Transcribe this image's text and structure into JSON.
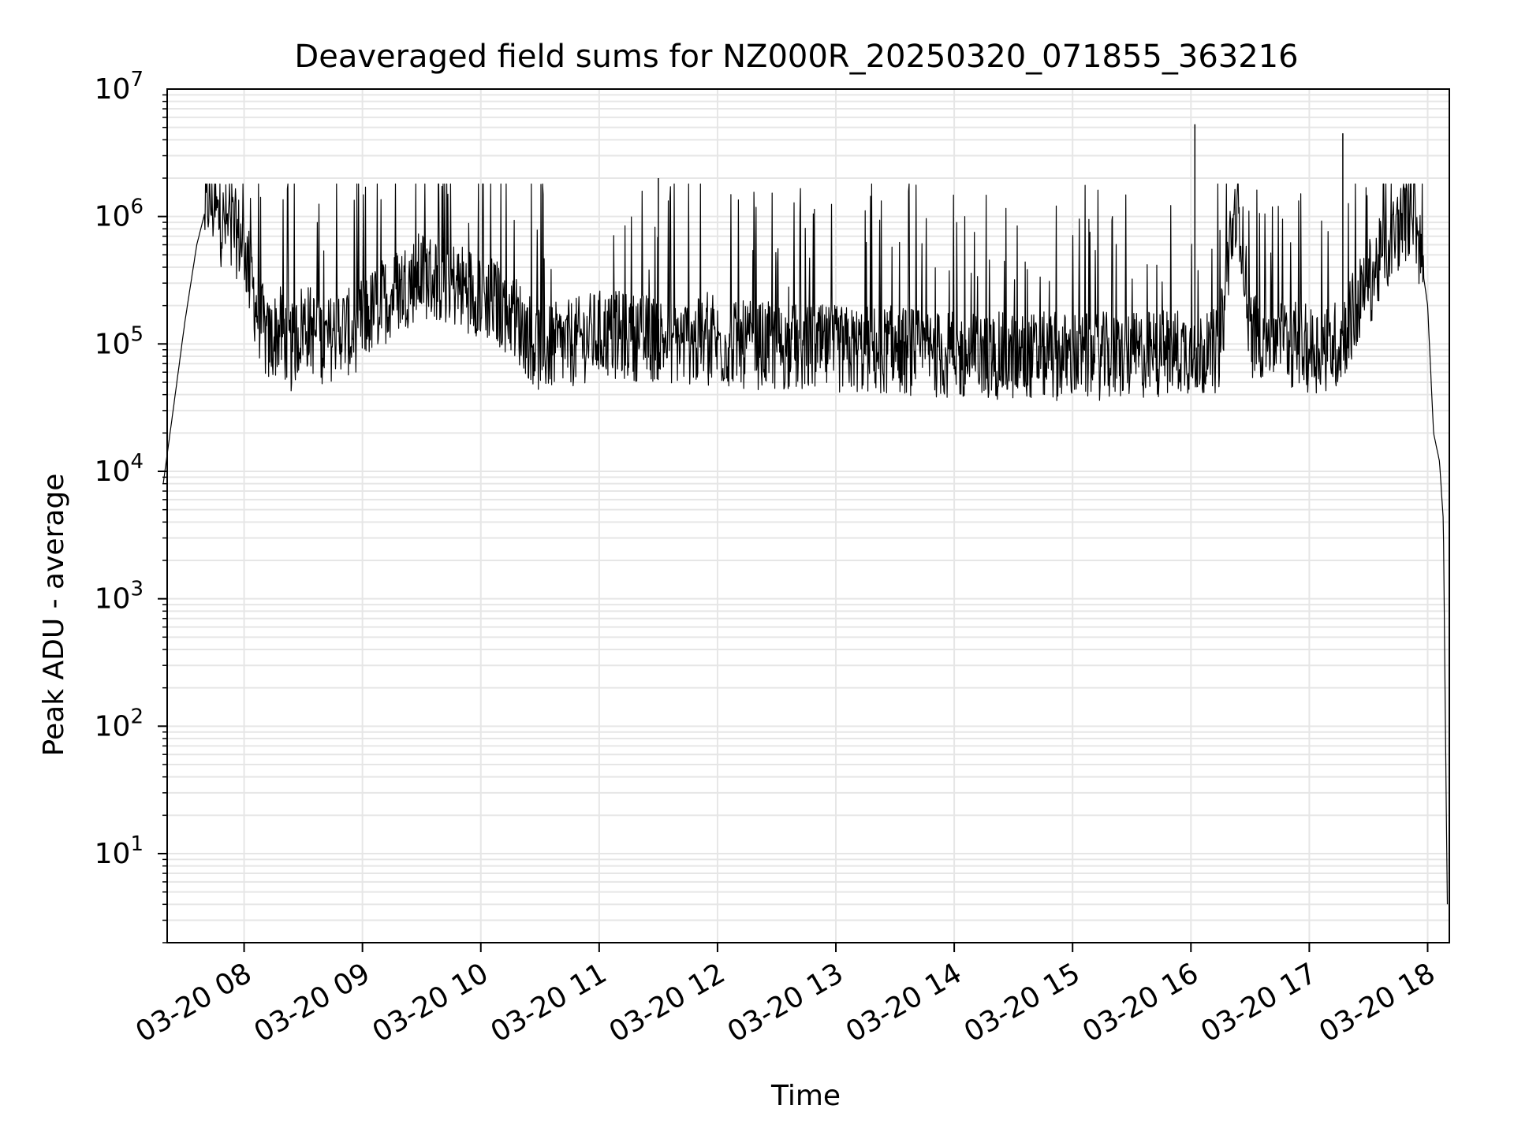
{
  "chart_data": {
    "type": "line",
    "title": "Deaveraged field sums for NZ000R_20250320_071855_363216",
    "xlabel": "Time",
    "ylabel": "Peak ADU - average",
    "yscale": "log",
    "ylim": [
      2,
      10000000
    ],
    "xlim": [
      "2025-03-20 07:21",
      "2025-03-20 18:11"
    ],
    "grid": "on (major and minor)",
    "legend": "none",
    "x_tick_labels": [
      "03-20 08",
      "03-20 09",
      "03-20 10",
      "03-20 11",
      "03-20 12",
      "03-20 13",
      "03-20 14",
      "03-20 15",
      "03-20 16",
      "03-20 17",
      "03-20 18"
    ],
    "y_tick_labels": [
      {
        "base": "10",
        "exp": "1"
      },
      {
        "base": "10",
        "exp": "2"
      },
      {
        "base": "10",
        "exp": "3"
      },
      {
        "base": "10",
        "exp": "4"
      },
      {
        "base": "10",
        "exp": "5"
      },
      {
        "base": "10",
        "exp": "6"
      },
      {
        "base": "10",
        "exp": "7"
      }
    ],
    "series": [
      {
        "color": "#000000",
        "x": [
          "2025-03-20 07:19",
          "2025-03-20 07:24",
          "2025-03-20 07:30",
          "2025-03-20 07:36",
          "2025-03-20 07:42",
          "2025-03-20 07:48",
          "2025-03-20 07:54",
          "2025-03-20 08:00",
          "2025-03-20 08:06",
          "2025-03-20 08:12",
          "2025-03-20 08:18",
          "2025-03-20 08:24",
          "2025-03-20 08:30",
          "2025-03-20 08:36",
          "2025-03-20 08:42",
          "2025-03-20 08:48",
          "2025-03-20 08:54",
          "2025-03-20 09:00",
          "2025-03-20 09:15",
          "2025-03-20 09:30",
          "2025-03-20 09:45",
          "2025-03-20 10:00",
          "2025-03-20 10:15",
          "2025-03-20 10:30",
          "2025-03-20 10:45",
          "2025-03-20 11:00",
          "2025-03-20 11:30",
          "2025-03-20 12:00",
          "2025-03-20 12:30",
          "2025-03-20 13:00",
          "2025-03-20 13:30",
          "2025-03-20 14:00",
          "2025-03-20 14:30",
          "2025-03-20 15:00",
          "2025-03-20 15:30",
          "2025-03-20 16:00",
          "2025-03-20 16:10",
          "2025-03-20 16:15",
          "2025-03-20 16:20",
          "2025-03-20 16:25",
          "2025-03-20 16:30",
          "2025-03-20 16:45",
          "2025-03-20 17:00",
          "2025-03-20 17:15",
          "2025-03-20 17:30",
          "2025-03-20 17:45",
          "2025-03-20 17:53",
          "2025-03-20 18:00",
          "2025-03-20 18:03",
          "2025-03-20 18:06",
          "2025-03-20 18:08",
          "2025-03-20 18:09",
          "2025-03-20 18:10"
        ],
        "y": [
          8000,
          30000,
          150000,
          600000,
          1400000,
          900000,
          800000,
          600000,
          200000,
          100000,
          130000,
          90000,
          150000,
          120000,
          100000,
          140000,
          120000,
          150000,
          250000,
          350000,
          300000,
          250000,
          180000,
          90000,
          100000,
          120000,
          110000,
          100000,
          95000,
          90000,
          90000,
          80000,
          80000,
          80000,
          80000,
          90000,
          80000,
          100000,
          700000,
          1000000,
          120000,
          110000,
          90000,
          100000,
          300000,
          800000,
          1200000,
          200000,
          20000,
          12000,
          4000,
          100,
          4
        ]
      }
    ],
    "annotations": {
      "spikes": [
        {
          "x": "2025-03-20 11:30",
          "y": 2000000
        },
        {
          "x": "2025-03-20 16:02",
          "y": 5300000
        },
        {
          "x": "2025-03-20 17:17",
          "y": 4500000
        }
      ]
    }
  }
}
